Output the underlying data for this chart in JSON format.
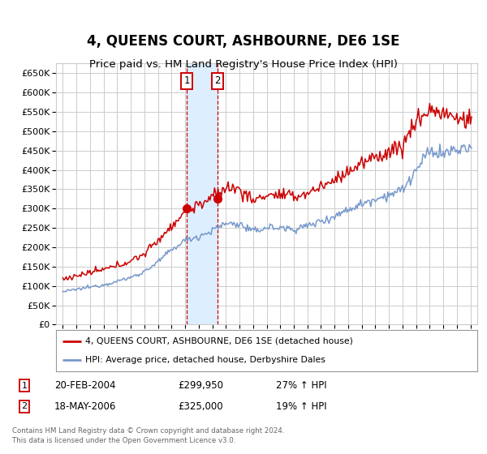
{
  "title": "4, QUEENS COURT, ASHBOURNE, DE6 1SE",
  "subtitle": "Price paid vs. HM Land Registry's House Price Index (HPI)",
  "legend_line1": "4, QUEENS COURT, ASHBOURNE, DE6 1SE (detached house)",
  "legend_line2": "HPI: Average price, detached house, Derbyshire Dales",
  "footer1": "Contains HM Land Registry data © Crown copyright and database right 2024.",
  "footer2": "This data is licensed under the Open Government Licence v3.0.",
  "sale1_date": "20-FEB-2004",
  "sale1_price": 299950,
  "sale2_date": "18-MAY-2006",
  "sale2_price": 325000,
  "sale1_x": 2004.12,
  "sale2_x": 2006.37,
  "ylim_min": 0,
  "ylim_max": 675000,
  "xlim_min": 1994.5,
  "xlim_max": 2025.5,
  "red_color": "#cc0000",
  "blue_color": "#7799cc",
  "shade_color": "#ddeeff",
  "grid_color": "#cccccc",
  "bg_color": "#ffffff",
  "title_fontsize": 12,
  "subtitle_fontsize": 9.5,
  "hpi_base": {
    "1995": 85000,
    "1996": 91000,
    "1997": 97000,
    "1998": 103000,
    "1999": 112000,
    "2000": 122000,
    "2001": 137000,
    "2002": 162000,
    "2003": 193000,
    "2004": 218000,
    "2005": 228000,
    "2006": 243000,
    "2007": 262000,
    "2008": 260000,
    "2009": 240000,
    "2010": 252000,
    "2011": 250000,
    "2012": 247000,
    "2013": 255000,
    "2014": 268000,
    "2015": 280000,
    "2016": 298000,
    "2017": 312000,
    "2018": 326000,
    "2019": 336000,
    "2020": 348000,
    "2021": 398000,
    "2022": 448000,
    "2023": 442000,
    "2024": 452000,
    "2025": 455000
  },
  "prop_base": {
    "1995": 118000,
    "1996": 126000,
    "1997": 134000,
    "1998": 142000,
    "1999": 152000,
    "2000": 165000,
    "2001": 183000,
    "2002": 218000,
    "2003": 255000,
    "2004": 290000,
    "2005": 310000,
    "2006": 330000,
    "2007": 355000,
    "2008": 350000,
    "2009": 320000,
    "2010": 336000,
    "2011": 334000,
    "2012": 330000,
    "2013": 340000,
    "2014": 357000,
    "2015": 373000,
    "2016": 397000,
    "2017": 415000,
    "2018": 433000,
    "2019": 447000,
    "2020": 462000,
    "2021": 527000,
    "2022": 555000,
    "2023": 548000,
    "2024": 530000,
    "2025": 530000
  }
}
